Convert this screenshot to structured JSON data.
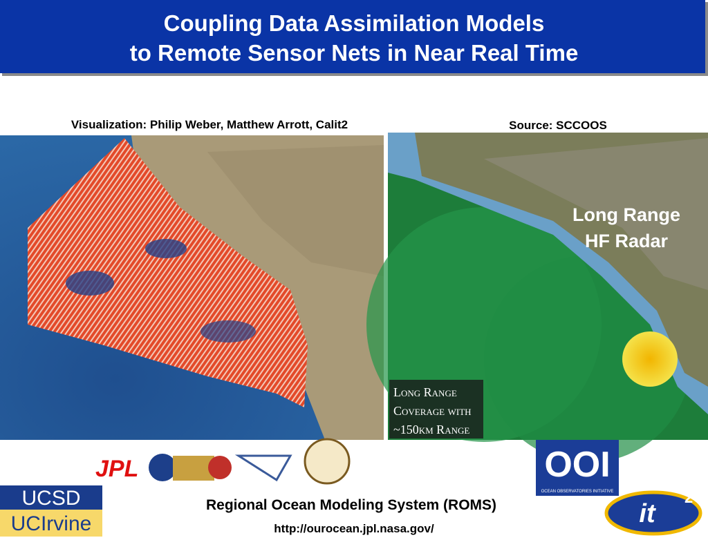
{
  "header": {
    "title_lines": [
      "Coupling Data Assimilation Models",
      "to Remote Sensor Nets in Near Real Time"
    ]
  },
  "left_panel": {
    "caption": "Visualization: Philip Weber, Matthew Arrott, Calit2"
  },
  "right_panel": {
    "caption": "Source: SCCOOS",
    "overlay_lines": [
      "Long Range",
      "HF Radar"
    ],
    "legend_lines": [
      "Long Range",
      "Coverage with",
      "~150km Range"
    ]
  },
  "logos": {
    "jpl": "JPL",
    "ucsd": "UCSD",
    "uci": "UCIrvine",
    "ooi": "OOI",
    "ooi_sub": "OCEAN OBSERVATORIES INITIATIVE",
    "it": "it",
    "it_sup": "2"
  },
  "footer": {
    "title": "Regional Ocean Modeling System (ROMS)",
    "url": "http://ourocean.jpl.nasa.gov/"
  }
}
